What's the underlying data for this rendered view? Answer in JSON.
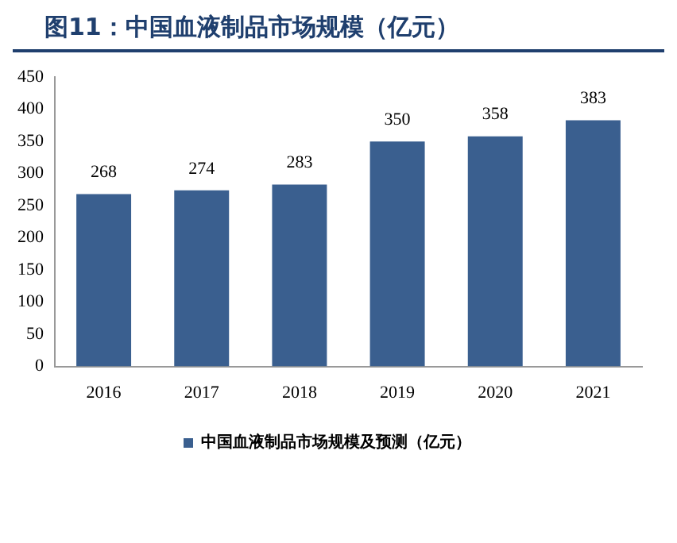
{
  "chart_data": {
    "type": "bar",
    "title": "图11：中国血液制品市场规模（亿元）",
    "categories": [
      "2016",
      "2017",
      "2018",
      "2019",
      "2020",
      "2021"
    ],
    "series": [
      {
        "name": "中国血液制品市场规模及预测（亿元）",
        "color": "#3a5f8f",
        "values": [
          268,
          274,
          283,
          350,
          358,
          383
        ]
      }
    ],
    "ylim": [
      0,
      450
    ],
    "yticks": [
      0,
      50,
      100,
      150,
      200,
      250,
      300,
      350,
      400,
      450
    ],
    "grid": false,
    "legend": "bottom",
    "data_labels": true
  }
}
